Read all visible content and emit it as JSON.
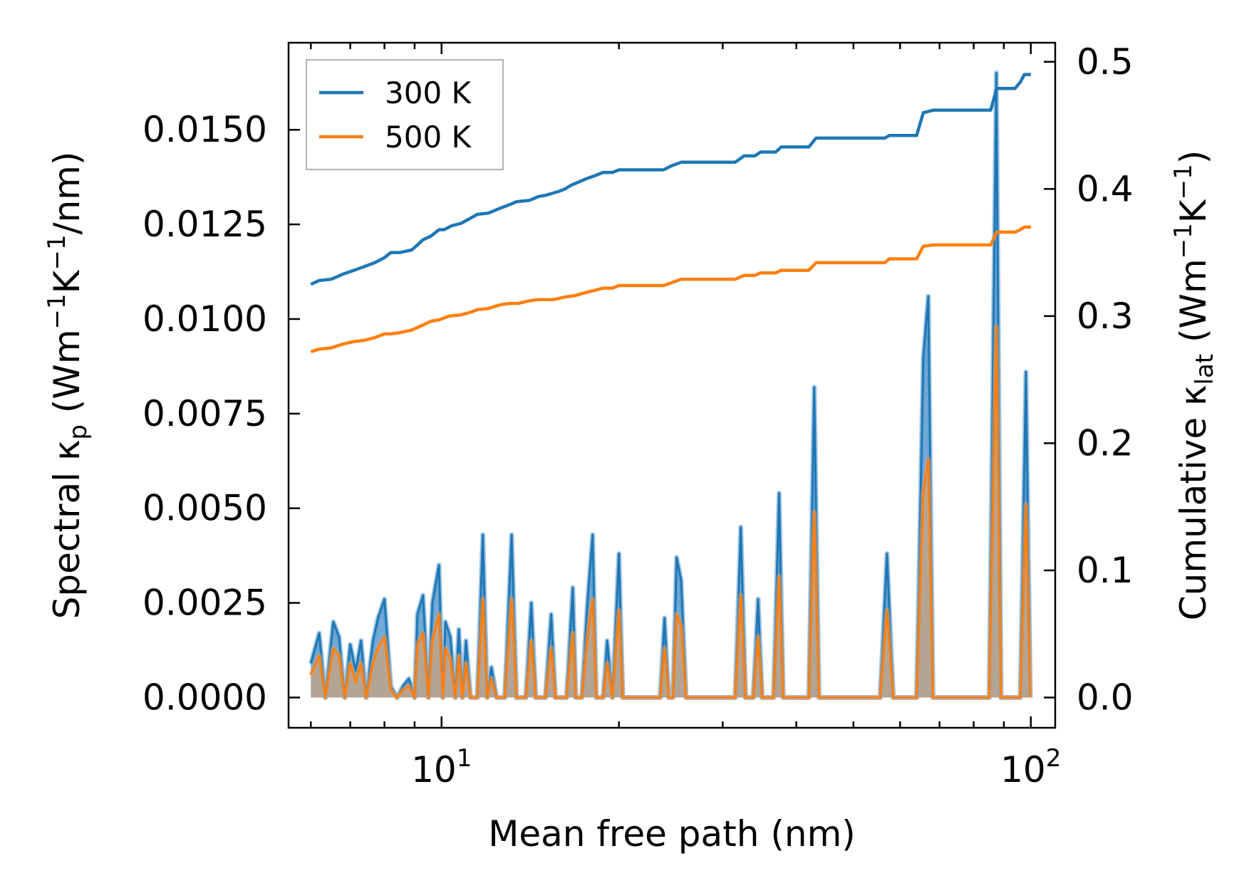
{
  "chart_data": {
    "type": "line",
    "xscale": "log",
    "xlim": [
      5.5,
      110
    ],
    "xlabel": "Mean free path (nm)",
    "x_ticks": [
      {
        "value": 10,
        "base": "10",
        "exp": "1"
      },
      {
        "value": 100,
        "base": "10",
        "exp": "2"
      }
    ],
    "y_left": {
      "label_main": "Spectral κ",
      "label_sub": "p",
      "label_unit_pre": " (Wm",
      "label_unit_sup1": "−1",
      "label_unit_mid": "K",
      "label_unit_sup2": "−1",
      "label_unit_post": "/nm)",
      "ylim": [
        -0.0008,
        0.0173
      ],
      "ticks": [
        0.0,
        0.0025,
        0.005,
        0.0075,
        0.01,
        0.0125,
        0.015
      ],
      "tick_labels": [
        "0.0000",
        "0.0025",
        "0.0050",
        "0.0075",
        "0.0100",
        "0.0125",
        "0.0150"
      ]
    },
    "y_right": {
      "label_main": "Cumulative κ",
      "label_sub": "lat",
      "label_unit_pre": " (Wm",
      "label_unit_sup1": "−1",
      "label_unit_mid": "K",
      "label_unit_sup2": "−1",
      "label_unit_post": ")",
      "ylim": [
        -0.0238,
        0.515
      ],
      "ticks": [
        0.0,
        0.1,
        0.2,
        0.3,
        0.4,
        0.5
      ],
      "tick_labels": [
        "0.0",
        "0.1",
        "0.2",
        "0.3",
        "0.4",
        "0.5"
      ]
    },
    "legend": {
      "position": "upper-left",
      "entries": [
        {
          "label": "300 K",
          "color": "#1f77b4"
        },
        {
          "label": "500 K",
          "color": "#ff7f0e"
        }
      ]
    },
    "series": [
      {
        "name": "300 K",
        "color": "#1f77b4",
        "fill": "#5a9bd0",
        "spectral": [
          [
            6.0,
            0.0009
          ],
          [
            6.2,
            0.0017
          ],
          [
            6.35,
            0.0
          ],
          [
            6.55,
            0.002
          ],
          [
            6.7,
            0.0016
          ],
          [
            6.85,
            0.0
          ],
          [
            7.0,
            0.0014
          ],
          [
            7.15,
            0.0007
          ],
          [
            7.3,
            0.0015
          ],
          [
            7.45,
            0.0
          ],
          [
            7.65,
            0.0015
          ],
          [
            7.8,
            0.0021
          ],
          [
            8.0,
            0.0026
          ],
          [
            8.2,
            0.0003
          ],
          [
            8.4,
            0.0
          ],
          [
            8.6,
            0.0003
          ],
          [
            8.8,
            0.0005
          ],
          [
            9.0,
            0.0
          ],
          [
            9.1,
            0.0022
          ],
          [
            9.3,
            0.0027
          ],
          [
            9.5,
            0.0
          ],
          [
            9.65,
            0.0025
          ],
          [
            9.9,
            0.0035
          ],
          [
            10.05,
            0.0
          ],
          [
            10.15,
            0.002
          ],
          [
            10.35,
            0.0016
          ],
          [
            10.55,
            0.0
          ],
          [
            10.7,
            0.0018
          ],
          [
            10.85,
            0.0
          ],
          [
            11.0,
            0.0015
          ],
          [
            11.2,
            0.0
          ],
          [
            11.5,
            0.0
          ],
          [
            11.75,
            0.0043
          ],
          [
            11.95,
            0.0
          ],
          [
            12.15,
            0.0008
          ],
          [
            12.4,
            0.0
          ],
          [
            12.8,
            0.0
          ],
          [
            13.15,
            0.0043
          ],
          [
            13.4,
            0.0
          ],
          [
            13.9,
            0.0
          ],
          [
            14.2,
            0.0025
          ],
          [
            14.45,
            0.0
          ],
          [
            15.0,
            0.0
          ],
          [
            15.35,
            0.0022
          ],
          [
            15.6,
            0.0
          ],
          [
            16.3,
            0.0
          ],
          [
            16.7,
            0.0029
          ],
          [
            16.9,
            0.0
          ],
          [
            17.3,
            0.0
          ],
          [
            17.7,
            0.0026
          ],
          [
            18.05,
            0.0043
          ],
          [
            18.3,
            0.0
          ],
          [
            18.8,
            0.0
          ],
          [
            19.1,
            0.0015
          ],
          [
            19.5,
            0.0
          ],
          [
            20.0,
            0.0038
          ],
          [
            20.3,
            0.0
          ],
          [
            23.5,
            0.0
          ],
          [
            23.9,
            0.0021
          ],
          [
            24.3,
            0.0
          ],
          [
            24.7,
            0.0
          ],
          [
            25.05,
            0.0037
          ],
          [
            25.5,
            0.0031
          ],
          [
            26.0,
            0.0
          ],
          [
            31.5,
            0.0
          ],
          [
            32.2,
            0.0045
          ],
          [
            32.8,
            0.0
          ],
          [
            33.8,
            0.0
          ],
          [
            34.45,
            0.0026
          ],
          [
            35.0,
            0.0
          ],
          [
            36.6,
            0.0
          ],
          [
            37.4,
            0.0054
          ],
          [
            38.0,
            0.0
          ],
          [
            42.0,
            0.0
          ],
          [
            42.9,
            0.0082
          ],
          [
            43.7,
            0.0
          ],
          [
            55.5,
            0.0
          ],
          [
            57.0,
            0.0038
          ],
          [
            58.4,
            0.0
          ],
          [
            64.0,
            0.0
          ],
          [
            65.7,
            0.009
          ],
          [
            67.0,
            0.0106
          ],
          [
            68.2,
            0.0
          ],
          [
            85.0,
            0.0
          ],
          [
            87.4,
            0.0165
          ],
          [
            89.0,
            0.0
          ],
          [
            96.0,
            0.0
          ],
          [
            98.1,
            0.0086
          ],
          [
            99.8,
            0.0
          ]
        ],
        "cumulative": [
          [
            6.0,
            0.325
          ],
          [
            6.2,
            0.328
          ],
          [
            6.5,
            0.329
          ],
          [
            6.8,
            0.333
          ],
          [
            7.1,
            0.336
          ],
          [
            7.4,
            0.339
          ],
          [
            7.7,
            0.342
          ],
          [
            8.0,
            0.346
          ],
          [
            8.2,
            0.35
          ],
          [
            8.5,
            0.35
          ],
          [
            8.9,
            0.352
          ],
          [
            9.1,
            0.356
          ],
          [
            9.3,
            0.36
          ],
          [
            9.6,
            0.363
          ],
          [
            9.9,
            0.368
          ],
          [
            10.1,
            0.368
          ],
          [
            10.4,
            0.371
          ],
          [
            10.8,
            0.373
          ],
          [
            11.2,
            0.377
          ],
          [
            11.5,
            0.38
          ],
          [
            12.0,
            0.381
          ],
          [
            12.6,
            0.385
          ],
          [
            13.1,
            0.388
          ],
          [
            13.4,
            0.39
          ],
          [
            14.1,
            0.391
          ],
          [
            14.6,
            0.394
          ],
          [
            15.0,
            0.395
          ],
          [
            15.8,
            0.398
          ],
          [
            16.2,
            0.4
          ],
          [
            16.6,
            0.403
          ],
          [
            17.0,
            0.405
          ],
          [
            17.6,
            0.408
          ],
          [
            18.1,
            0.41
          ],
          [
            18.8,
            0.413
          ],
          [
            19.5,
            0.413
          ],
          [
            20.0,
            0.415
          ],
          [
            23.8,
            0.415
          ],
          [
            24.5,
            0.418
          ],
          [
            25.5,
            0.421
          ],
          [
            31.5,
            0.421
          ],
          [
            32.6,
            0.426
          ],
          [
            34.0,
            0.426
          ],
          [
            34.8,
            0.429
          ],
          [
            36.9,
            0.429
          ],
          [
            37.7,
            0.433
          ],
          [
            42.0,
            0.433
          ],
          [
            43.2,
            0.44
          ],
          [
            56.5,
            0.44
          ],
          [
            57.5,
            0.442
          ],
          [
            64.0,
            0.442
          ],
          [
            65.7,
            0.46
          ],
          [
            68.5,
            0.462
          ],
          [
            85.5,
            0.462
          ],
          [
            87.5,
            0.479
          ],
          [
            94.0,
            0.479
          ],
          [
            96.0,
            0.484
          ],
          [
            97.5,
            0.49
          ],
          [
            100.0,
            0.49
          ]
        ]
      },
      {
        "name": "500 K",
        "color": "#ff7f0e",
        "fill": "#c9a27e",
        "spectral": [
          [
            6.0,
            0.0006
          ],
          [
            6.2,
            0.0011
          ],
          [
            6.35,
            0.0
          ],
          [
            6.55,
            0.0013
          ],
          [
            6.7,
            0.0011
          ],
          [
            6.85,
            0.0
          ],
          [
            7.0,
            0.0009
          ],
          [
            7.15,
            0.0004
          ],
          [
            7.3,
            0.0009
          ],
          [
            7.45,
            0.0
          ],
          [
            7.65,
            0.0009
          ],
          [
            7.8,
            0.0013
          ],
          [
            8.0,
            0.0016
          ],
          [
            8.2,
            0.0002
          ],
          [
            8.4,
            0.0
          ],
          [
            8.6,
            0.0002
          ],
          [
            8.8,
            0.0003
          ],
          [
            9.0,
            0.0
          ],
          [
            9.1,
            0.0014
          ],
          [
            9.3,
            0.0017
          ],
          [
            9.5,
            0.0
          ],
          [
            9.65,
            0.0015
          ],
          [
            9.9,
            0.0022
          ],
          [
            10.05,
            0.0
          ],
          [
            10.15,
            0.0013
          ],
          [
            10.35,
            0.001
          ],
          [
            10.55,
            0.0
          ],
          [
            10.7,
            0.0011
          ],
          [
            10.85,
            0.0
          ],
          [
            11.0,
            0.0009
          ],
          [
            11.2,
            0.0
          ],
          [
            11.5,
            0.0
          ],
          [
            11.75,
            0.0026
          ],
          [
            11.95,
            0.0
          ],
          [
            12.15,
            0.0005
          ],
          [
            12.4,
            0.0
          ],
          [
            12.8,
            0.0
          ],
          [
            13.15,
            0.0026
          ],
          [
            13.4,
            0.0
          ],
          [
            13.9,
            0.0
          ],
          [
            14.2,
            0.0015
          ],
          [
            14.45,
            0.0
          ],
          [
            15.0,
            0.0
          ],
          [
            15.35,
            0.0013
          ],
          [
            15.6,
            0.0
          ],
          [
            16.3,
            0.0
          ],
          [
            16.7,
            0.0017
          ],
          [
            16.9,
            0.0
          ],
          [
            17.3,
            0.0
          ],
          [
            17.7,
            0.0016
          ],
          [
            18.05,
            0.0026
          ],
          [
            18.3,
            0.0
          ],
          [
            18.8,
            0.0
          ],
          [
            19.1,
            0.0009
          ],
          [
            19.5,
            0.0
          ],
          [
            20.0,
            0.0023
          ],
          [
            20.3,
            0.0
          ],
          [
            23.5,
            0.0
          ],
          [
            23.9,
            0.0013
          ],
          [
            24.3,
            0.0
          ],
          [
            24.7,
            0.0
          ],
          [
            25.05,
            0.0022
          ],
          [
            25.5,
            0.0019
          ],
          [
            26.0,
            0.0
          ],
          [
            31.5,
            0.0
          ],
          [
            32.2,
            0.0027
          ],
          [
            32.8,
            0.0
          ],
          [
            33.8,
            0.0
          ],
          [
            34.45,
            0.0016
          ],
          [
            35.0,
            0.0
          ],
          [
            36.6,
            0.0
          ],
          [
            37.4,
            0.0032
          ],
          [
            38.0,
            0.0
          ],
          [
            42.0,
            0.0
          ],
          [
            42.9,
            0.0049
          ],
          [
            43.7,
            0.0
          ],
          [
            55.5,
            0.0
          ],
          [
            57.0,
            0.0023
          ],
          [
            58.4,
            0.0
          ],
          [
            64.0,
            0.0
          ],
          [
            65.7,
            0.0054
          ],
          [
            67.0,
            0.0063
          ],
          [
            68.2,
            0.0
          ],
          [
            85.0,
            0.0
          ],
          [
            87.4,
            0.0098
          ],
          [
            89.0,
            0.0
          ],
          [
            96.0,
            0.0
          ],
          [
            98.1,
            0.0051
          ],
          [
            99.8,
            0.0
          ]
        ],
        "cumulative": [
          [
            6.0,
            0.272
          ],
          [
            6.2,
            0.274
          ],
          [
            6.5,
            0.275
          ],
          [
            6.8,
            0.278
          ],
          [
            7.1,
            0.28
          ],
          [
            7.4,
            0.281
          ],
          [
            7.7,
            0.283
          ],
          [
            8.0,
            0.286
          ],
          [
            8.2,
            0.286
          ],
          [
            8.5,
            0.287
          ],
          [
            8.9,
            0.289
          ],
          [
            9.1,
            0.291
          ],
          [
            9.3,
            0.293
          ],
          [
            9.6,
            0.296
          ],
          [
            9.9,
            0.297
          ],
          [
            10.3,
            0.3
          ],
          [
            10.8,
            0.301
          ],
          [
            11.2,
            0.303
          ],
          [
            11.5,
            0.305
          ],
          [
            12.0,
            0.306
          ],
          [
            12.6,
            0.309
          ],
          [
            13.1,
            0.31
          ],
          [
            13.5,
            0.31
          ],
          [
            14.1,
            0.312
          ],
          [
            14.6,
            0.313
          ],
          [
            15.5,
            0.313
          ],
          [
            16.2,
            0.315
          ],
          [
            16.8,
            0.316
          ],
          [
            17.4,
            0.318
          ],
          [
            18.1,
            0.32
          ],
          [
            18.8,
            0.322
          ],
          [
            19.5,
            0.322
          ],
          [
            20.0,
            0.324
          ],
          [
            23.8,
            0.324
          ],
          [
            24.5,
            0.326
          ],
          [
            25.5,
            0.329
          ],
          [
            31.5,
            0.329
          ],
          [
            32.6,
            0.332
          ],
          [
            34.0,
            0.332
          ],
          [
            34.8,
            0.334
          ],
          [
            36.9,
            0.334
          ],
          [
            37.7,
            0.336
          ],
          [
            42.0,
            0.336
          ],
          [
            43.2,
            0.342
          ],
          [
            56.5,
            0.342
          ],
          [
            57.5,
            0.345
          ],
          [
            64.0,
            0.345
          ],
          [
            65.7,
            0.355
          ],
          [
            68.5,
            0.356
          ],
          [
            85.5,
            0.356
          ],
          [
            87.5,
            0.366
          ],
          [
            94.0,
            0.366
          ],
          [
            96.0,
            0.368
          ],
          [
            97.5,
            0.37
          ],
          [
            100.0,
            0.37
          ]
        ]
      }
    ]
  }
}
